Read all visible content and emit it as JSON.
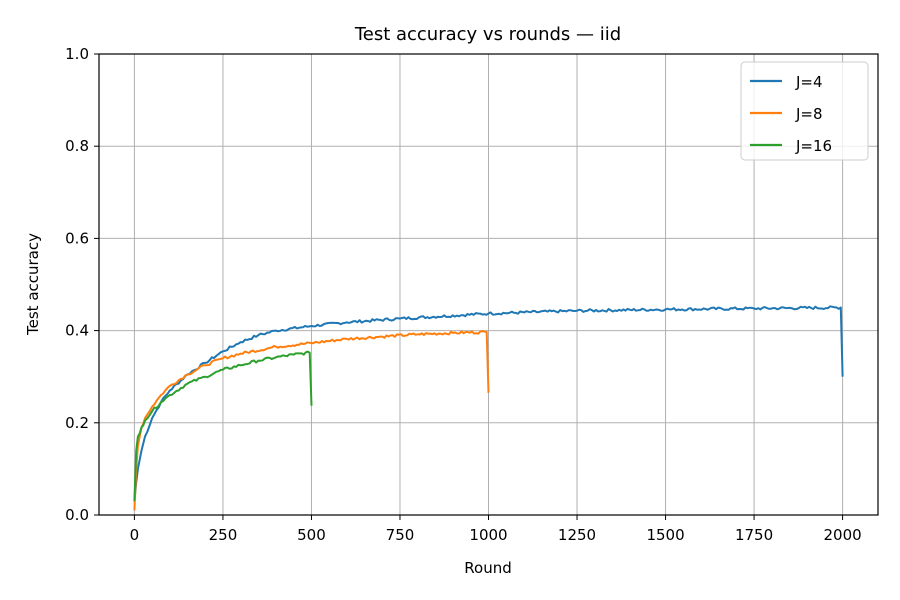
{
  "chart_data": {
    "type": "line",
    "title": "Test accuracy vs rounds — iid",
    "xlabel": "Round",
    "ylabel": "Test accuracy",
    "xlim": [
      -100,
      2100
    ],
    "ylim": [
      0.0,
      1.0
    ],
    "xticks": [
      0,
      250,
      500,
      750,
      1000,
      1250,
      1500,
      1750,
      2000
    ],
    "xtick_labels": [
      "0",
      "250",
      "500",
      "750",
      "1000",
      "1250",
      "1500",
      "1750",
      "2000"
    ],
    "yticks": [
      0.0,
      0.2,
      0.4,
      0.6,
      0.8,
      1.0
    ],
    "ytick_labels": [
      "0.0",
      "0.2",
      "0.4",
      "0.6",
      "0.8",
      "1.0"
    ],
    "grid": true,
    "legend_position": "top-right",
    "series": [
      {
        "name": "J=4",
        "color": "#1f77b4",
        "x": [
          0,
          5,
          10,
          20,
          30,
          50,
          75,
          100,
          150,
          200,
          250,
          300,
          350,
          400,
          500,
          600,
          750,
          1000,
          1250,
          1500,
          1750,
          1995,
          2000
        ],
        "y": [
          0.03,
          0.07,
          0.1,
          0.14,
          0.17,
          0.21,
          0.245,
          0.27,
          0.305,
          0.33,
          0.355,
          0.375,
          0.39,
          0.4,
          0.41,
          0.418,
          0.426,
          0.437,
          0.443,
          0.446,
          0.448,
          0.45,
          0.3
        ]
      },
      {
        "name": "J=8",
        "color": "#ff7f0e",
        "x": [
          0,
          5,
          10,
          20,
          30,
          50,
          75,
          100,
          150,
          200,
          250,
          300,
          400,
          500,
          600,
          700,
          800,
          900,
          995,
          1000
        ],
        "y": [
          0.01,
          0.1,
          0.15,
          0.19,
          0.21,
          0.235,
          0.26,
          0.28,
          0.305,
          0.325,
          0.34,
          0.35,
          0.365,
          0.373,
          0.382,
          0.387,
          0.392,
          0.395,
          0.397,
          0.265
        ]
      },
      {
        "name": "J=16",
        "color": "#2ca02c",
        "x": [
          0,
          5,
          10,
          20,
          30,
          50,
          75,
          100,
          150,
          200,
          250,
          300,
          350,
          400,
          450,
          495,
          500
        ],
        "y": [
          0.03,
          0.14,
          0.17,
          0.19,
          0.205,
          0.225,
          0.245,
          0.26,
          0.285,
          0.3,
          0.315,
          0.325,
          0.335,
          0.342,
          0.348,
          0.352,
          0.237
        ]
      }
    ]
  }
}
